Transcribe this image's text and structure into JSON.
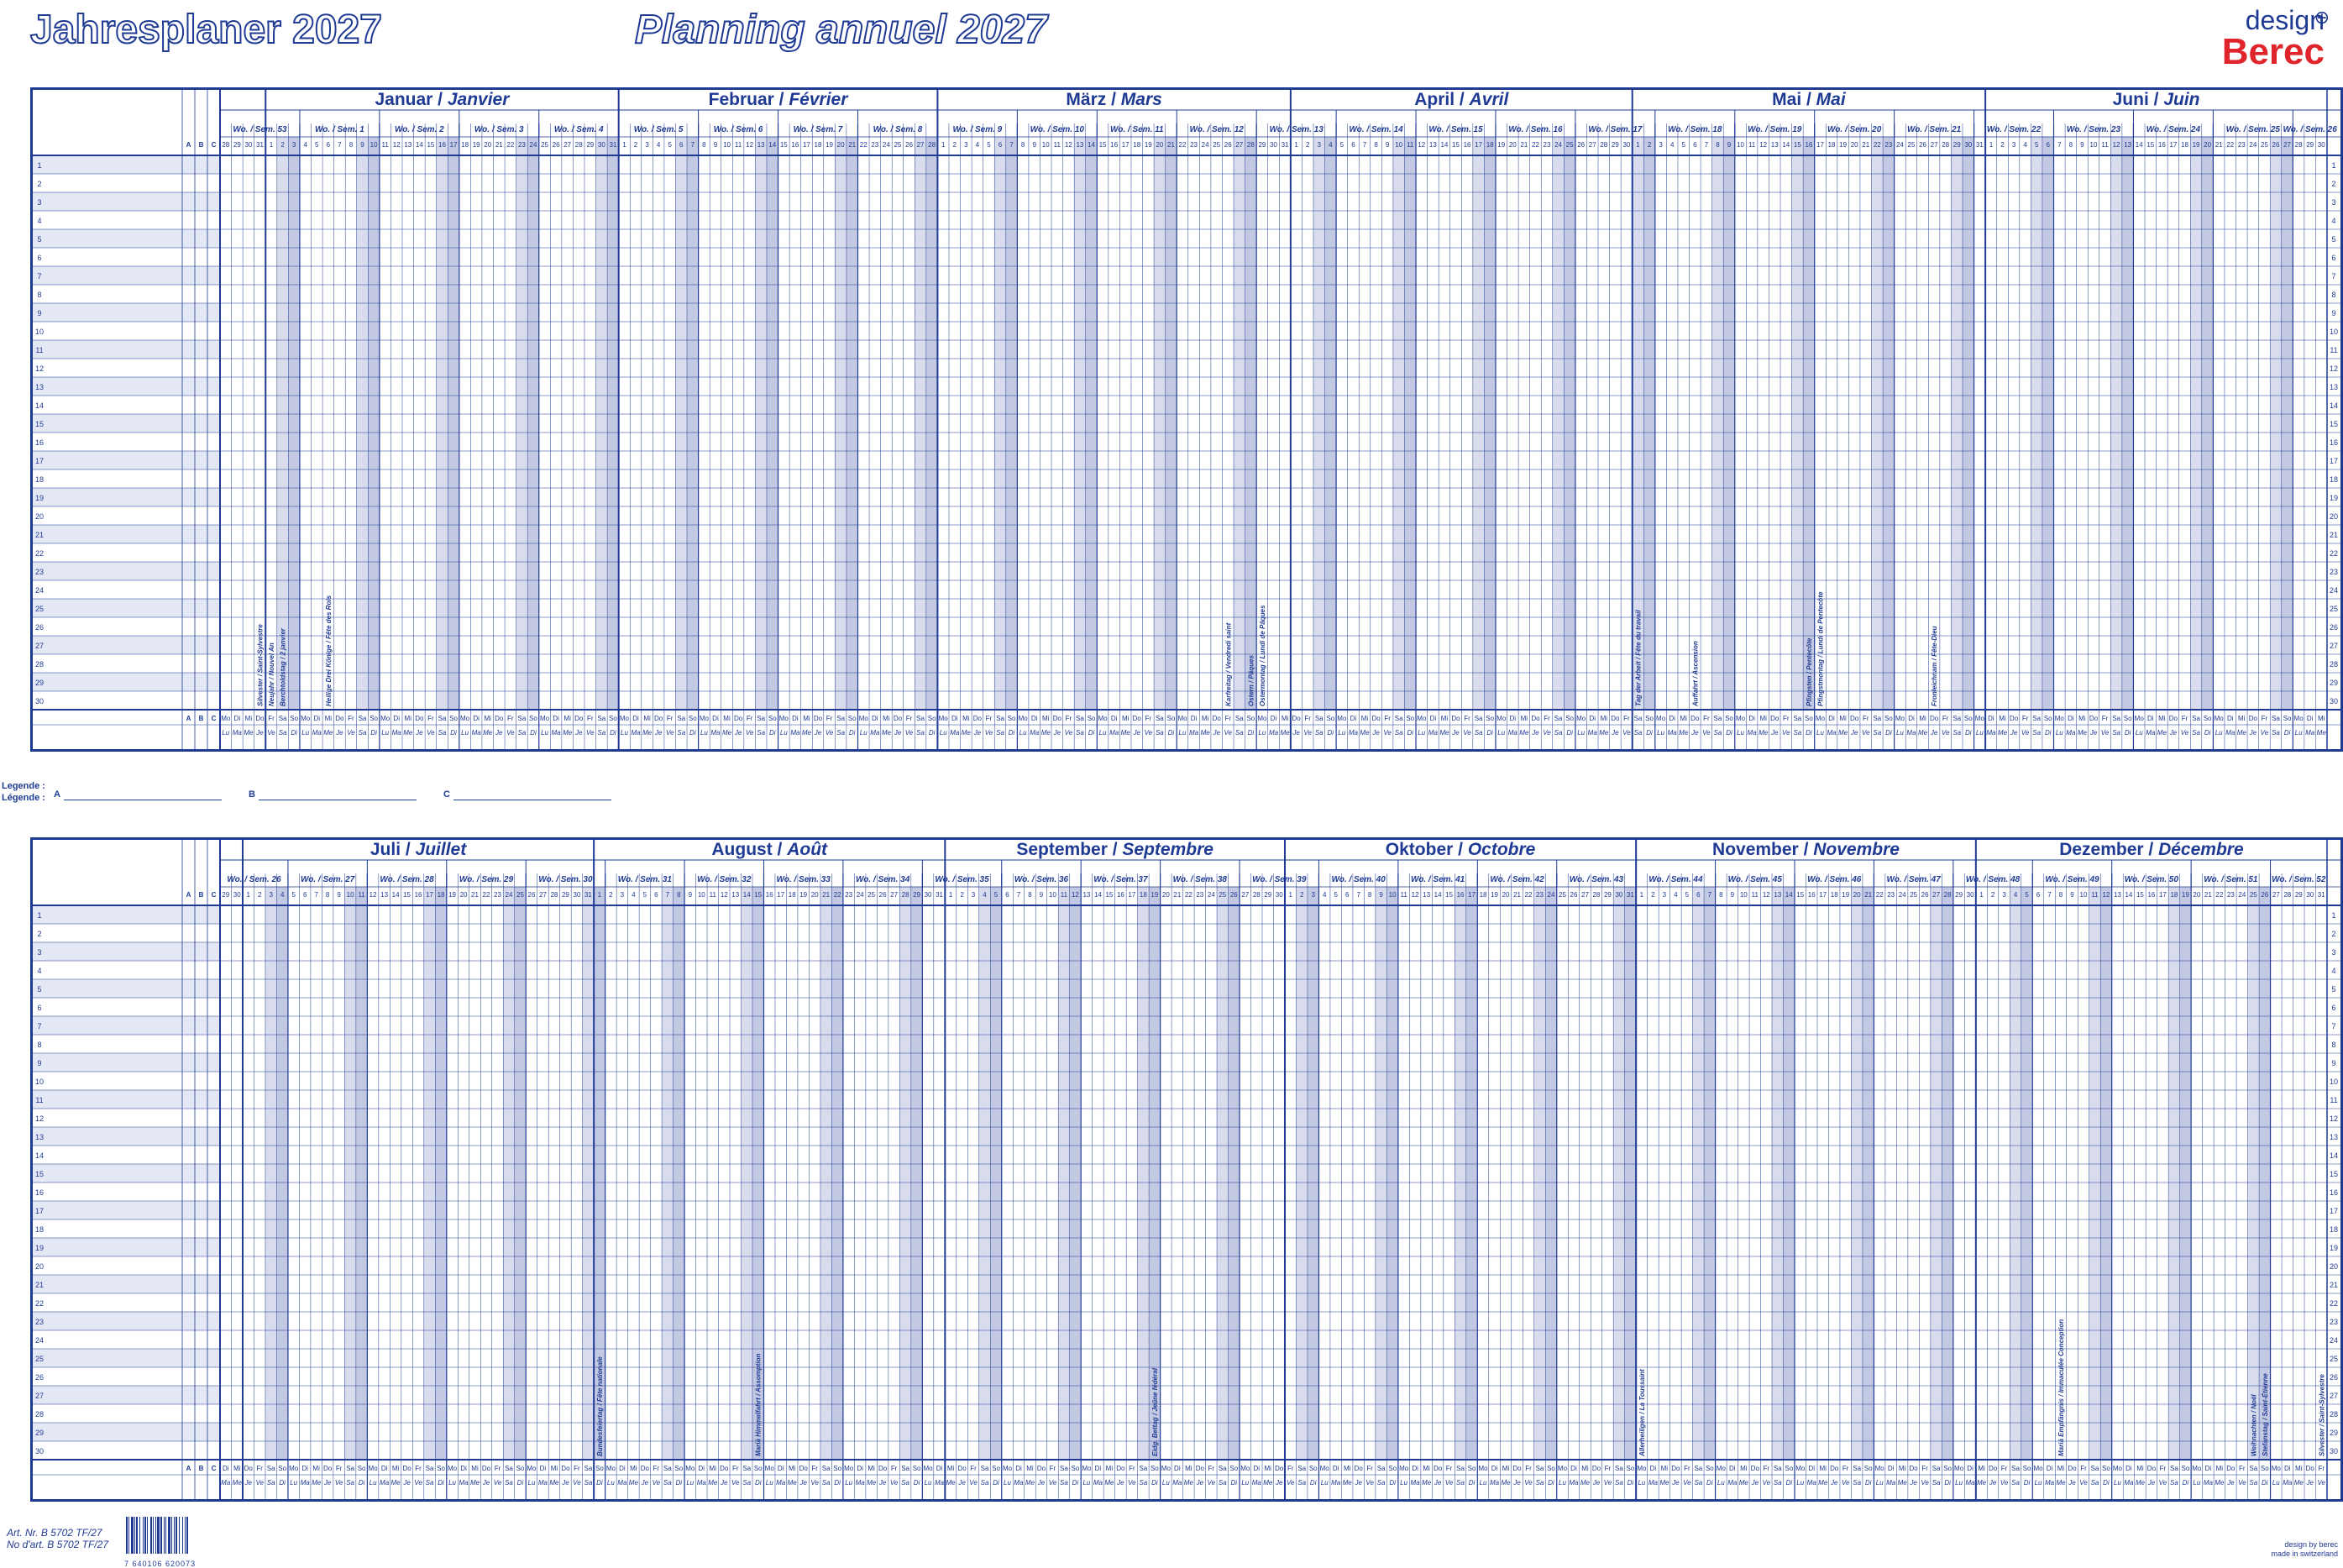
{
  "header": {
    "title_de": "Jahresplaner 2027",
    "title_fr": "Planning annuel 2027",
    "brand_design": "design",
    "brand_name": "Berec"
  },
  "colors": {
    "ink": "#1f3a93",
    "shade": "#b8c0dd",
    "brand": "#e0242b",
    "row_alt": "#e4e8f4"
  },
  "columns_abc": [
    "A",
    "B",
    "C"
  ],
  "rows": [
    "1",
    "2",
    "3",
    "4",
    "5",
    "6",
    "7",
    "8",
    "9",
    "10",
    "11",
    "12",
    "13",
    "14",
    "15",
    "16",
    "17",
    "18",
    "19",
    "20",
    "21",
    "22",
    "23",
    "24",
    "25",
    "26",
    "27",
    "28",
    "29",
    "30"
  ],
  "week_prefix": "Wo. / Sem.",
  "day_abbr_de": [
    "Mo",
    "Di",
    "Mi",
    "Do",
    "Fr",
    "Sa",
    "So"
  ],
  "day_abbr_fr": [
    "Lu",
    "Ma",
    "Me",
    "Je",
    "Ve",
    "Sa",
    "Di"
  ],
  "first_half": {
    "start_dow": 0,
    "lead_days": [
      28,
      29,
      30,
      31
    ],
    "months": [
      {
        "de": "Januar",
        "fr": "Janvier",
        "days": 31
      },
      {
        "de": "Februar",
        "fr": "Février",
        "days": 28
      },
      {
        "de": "März",
        "fr": "Mars",
        "days": 31
      },
      {
        "de": "April",
        "fr": "Avril",
        "days": 30
      },
      {
        "de": "Mai",
        "fr": "Mai",
        "days": 31
      },
      {
        "de": "Juni",
        "fr": "Juin",
        "days": 30
      }
    ],
    "first_week": 53,
    "holidays": [
      {
        "day": 31,
        "month": 0,
        "lead": true,
        "text": "Silvester / Saint-Sylvestre"
      },
      {
        "day": 1,
        "month": 0,
        "text": "Neujahr / Nouvel An"
      },
      {
        "day": 2,
        "month": 0,
        "text": "Berchtoldstag / 2 janvier"
      },
      {
        "day": 6,
        "month": 0,
        "text": "Heilige Drei Könige / Fête des Rois"
      },
      {
        "day": 26,
        "month": 2,
        "text": "Karfreitag / Vendredi saint"
      },
      {
        "day": 28,
        "month": 2,
        "text": "Ostern / Pâques"
      },
      {
        "day": 29,
        "month": 2,
        "text": "Ostermontag / Lundi de Pâques"
      },
      {
        "day": 1,
        "month": 4,
        "text": "Tag der Arbeit / Fête du travail"
      },
      {
        "day": 6,
        "month": 4,
        "text": "Auffahrt / Ascension"
      },
      {
        "day": 16,
        "month": 4,
        "text": "Pfingsten / Pentecôte"
      },
      {
        "day": 17,
        "month": 4,
        "text": "Pfingstmontag / Lundi de Pentecôte"
      },
      {
        "day": 27,
        "month": 4,
        "text": "Fronleichnam / Fête-Dieu"
      }
    ]
  },
  "second_half": {
    "start_dow": 1,
    "lead_days": [
      29,
      30
    ],
    "months": [
      {
        "de": "Juli",
        "fr": "Juillet",
        "days": 31
      },
      {
        "de": "August",
        "fr": "Août",
        "days": 31
      },
      {
        "de": "September",
        "fr": "Septembre",
        "days": 30
      },
      {
        "de": "Oktober",
        "fr": "Octobre",
        "days": 31
      },
      {
        "de": "November",
        "fr": "Novembre",
        "days": 30
      },
      {
        "de": "Dezember",
        "fr": "Décembre",
        "days": 31
      }
    ],
    "first_week": 26,
    "holidays": [
      {
        "day": 1,
        "month": 1,
        "text": "Bundesfeiertag / Fête nationale"
      },
      {
        "day": 15,
        "month": 1,
        "text": "Mariä Himmelfahrt / Assomption"
      },
      {
        "day": 19,
        "month": 2,
        "text": "Eidg. Bettag / Jeûne fédéral"
      },
      {
        "day": 1,
        "month": 4,
        "text": "Allerheiligen / La Toussaint"
      },
      {
        "day": 8,
        "month": 5,
        "text": "Mariä Empfängnis / Immaculée Conception"
      },
      {
        "day": 25,
        "month": 5,
        "text": "Weihnachten / Noël"
      },
      {
        "day": 26,
        "month": 5,
        "text": "Stefanstag / Saint-Étienne"
      },
      {
        "day": 31,
        "month": 5,
        "text": "Silvester / Saint-Sylvestre"
      }
    ]
  },
  "legend": {
    "label_de": "Legende :",
    "label_fr": "Légende :",
    "a": "A",
    "b": "B",
    "c": "C"
  },
  "footer": {
    "art_nr": "Art. Nr. B 5702 TF/27",
    "no_dart": "No d'art. B 5702 TF/27",
    "barcode_digits": "7 640106 620073",
    "design_credit": "design by berec",
    "made_in": "made in switzerland"
  }
}
